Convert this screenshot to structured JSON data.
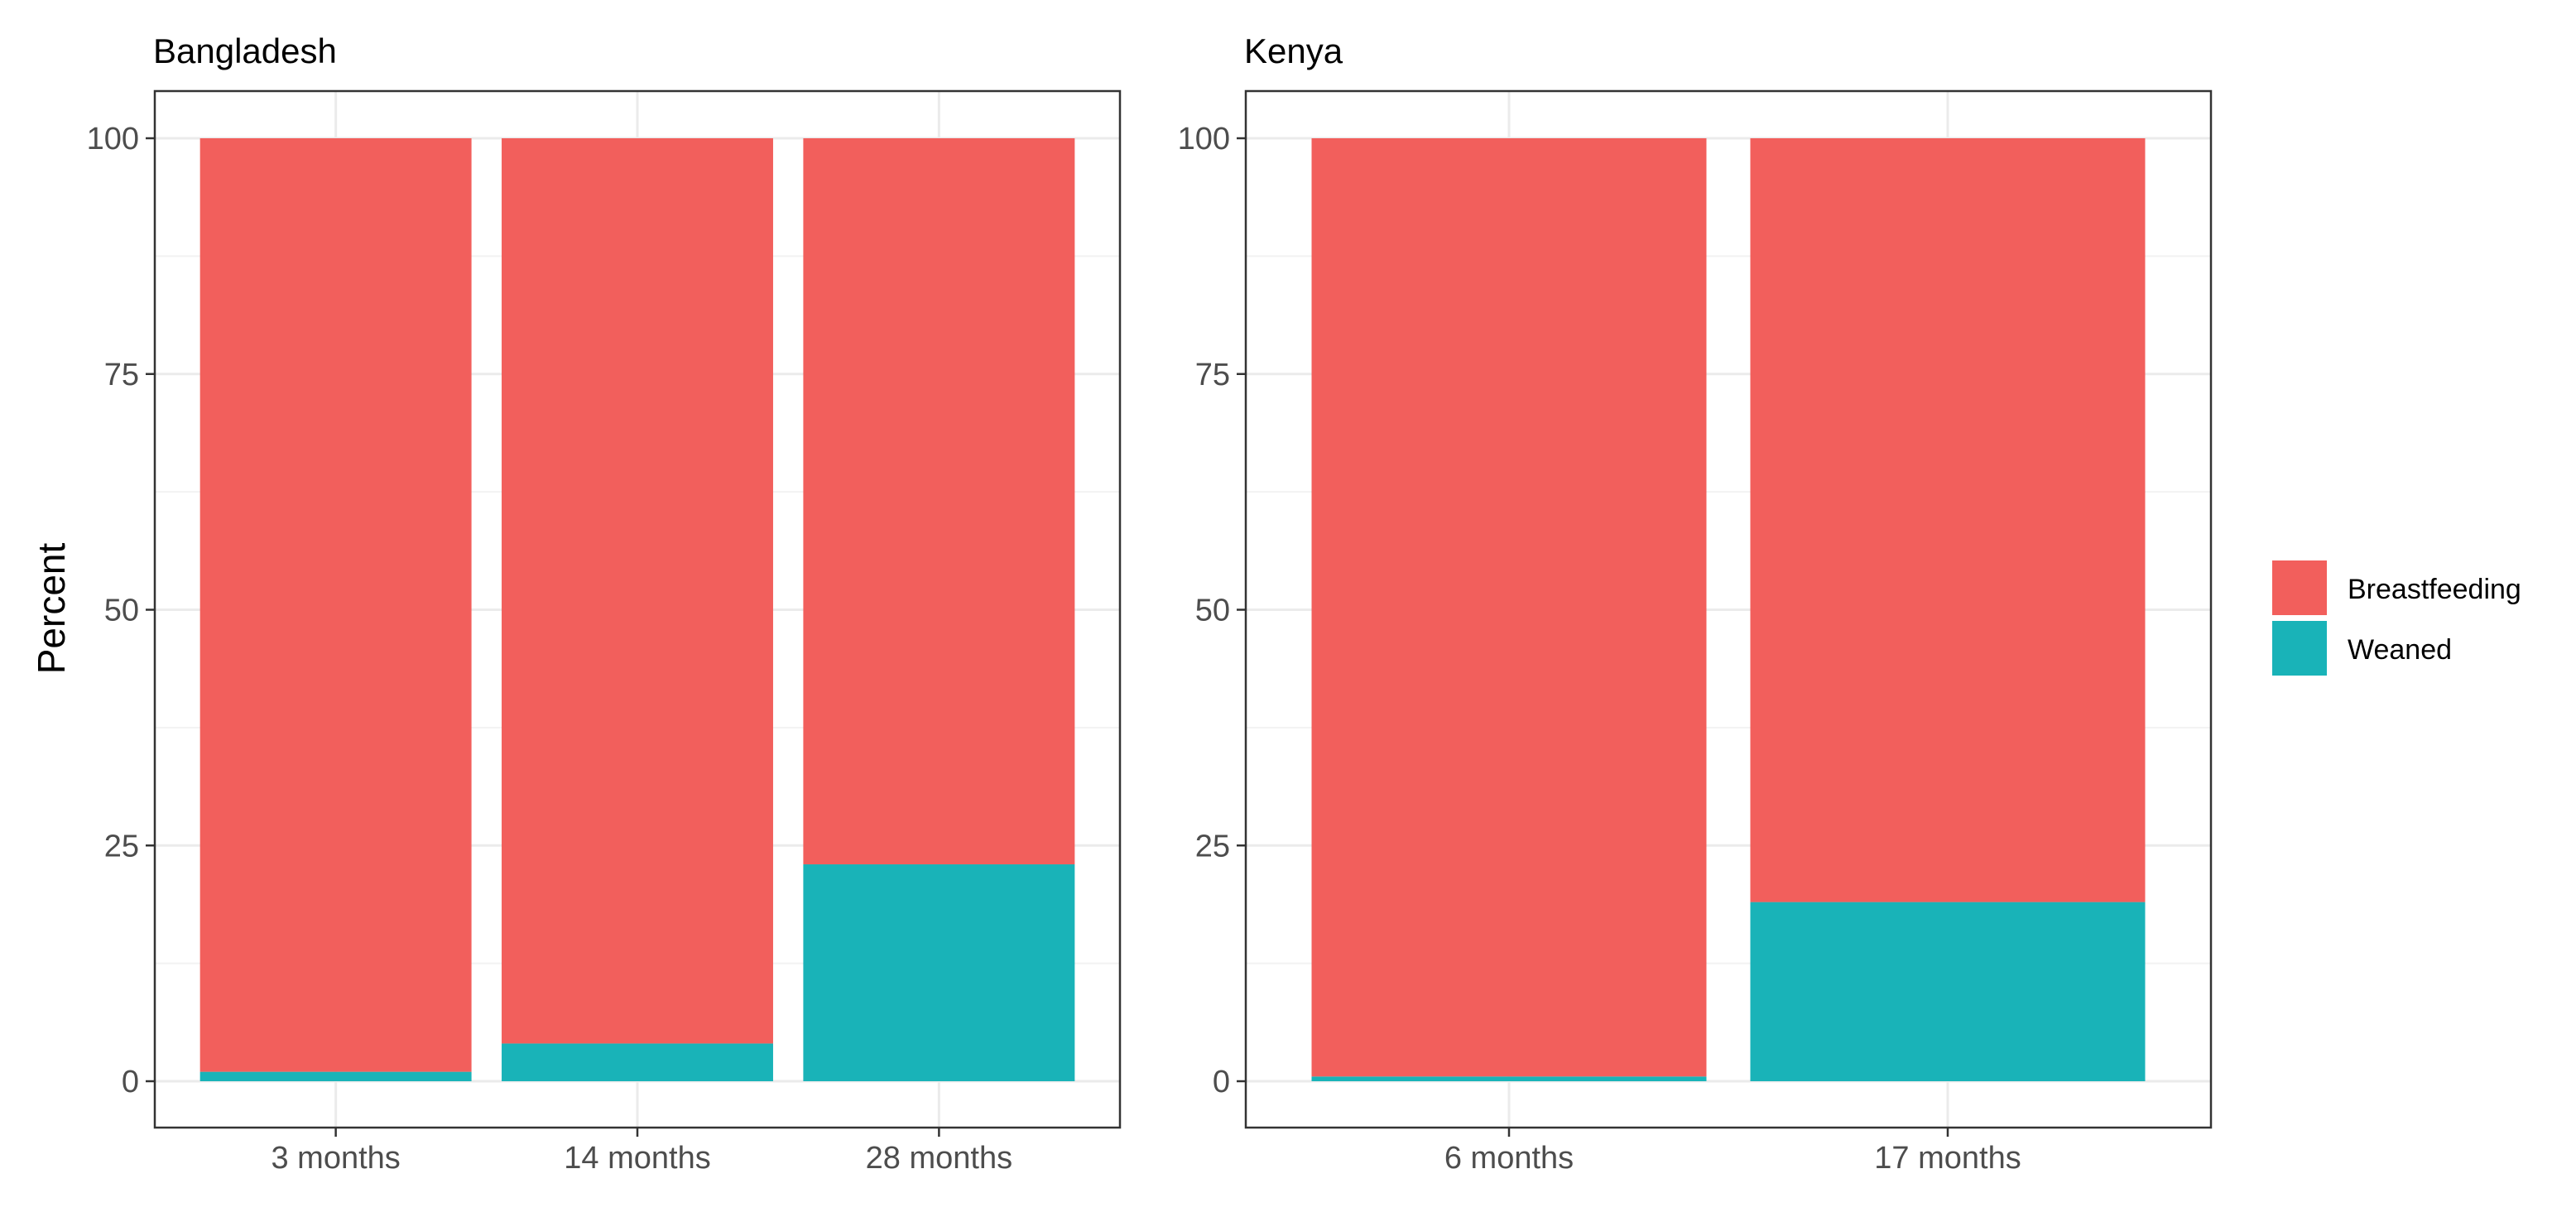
{
  "chart_data": {
    "type": "bar",
    "stacked": true,
    "ylabel": "Percent",
    "ylim": [
      0,
      100
    ],
    "yticks": [
      0,
      25,
      50,
      75,
      100
    ],
    "grid": true,
    "legend_position": "right",
    "series_colors": {
      "Breastfeeding": "#F25F5C",
      "Weaned": "#19B3B8"
    },
    "legend": [
      {
        "name": "Breastfeeding",
        "color": "#F25F5C"
      },
      {
        "name": "Weaned",
        "color": "#19B3B8"
      }
    ],
    "panels": [
      {
        "title": "Bangladesh",
        "categories": [
          "3 months",
          "14 months",
          "28 months"
        ],
        "series": [
          {
            "name": "Weaned",
            "values": [
              1,
              4,
              23
            ]
          },
          {
            "name": "Breastfeeding",
            "values": [
              99,
              96,
              77
            ]
          }
        ]
      },
      {
        "title": "Kenya",
        "categories": [
          "6 months",
          "17 months"
        ],
        "series": [
          {
            "name": "Weaned",
            "values": [
              0.5,
              19
            ]
          },
          {
            "name": "Breastfeeding",
            "values": [
              99.5,
              81
            ]
          }
        ]
      }
    ]
  }
}
